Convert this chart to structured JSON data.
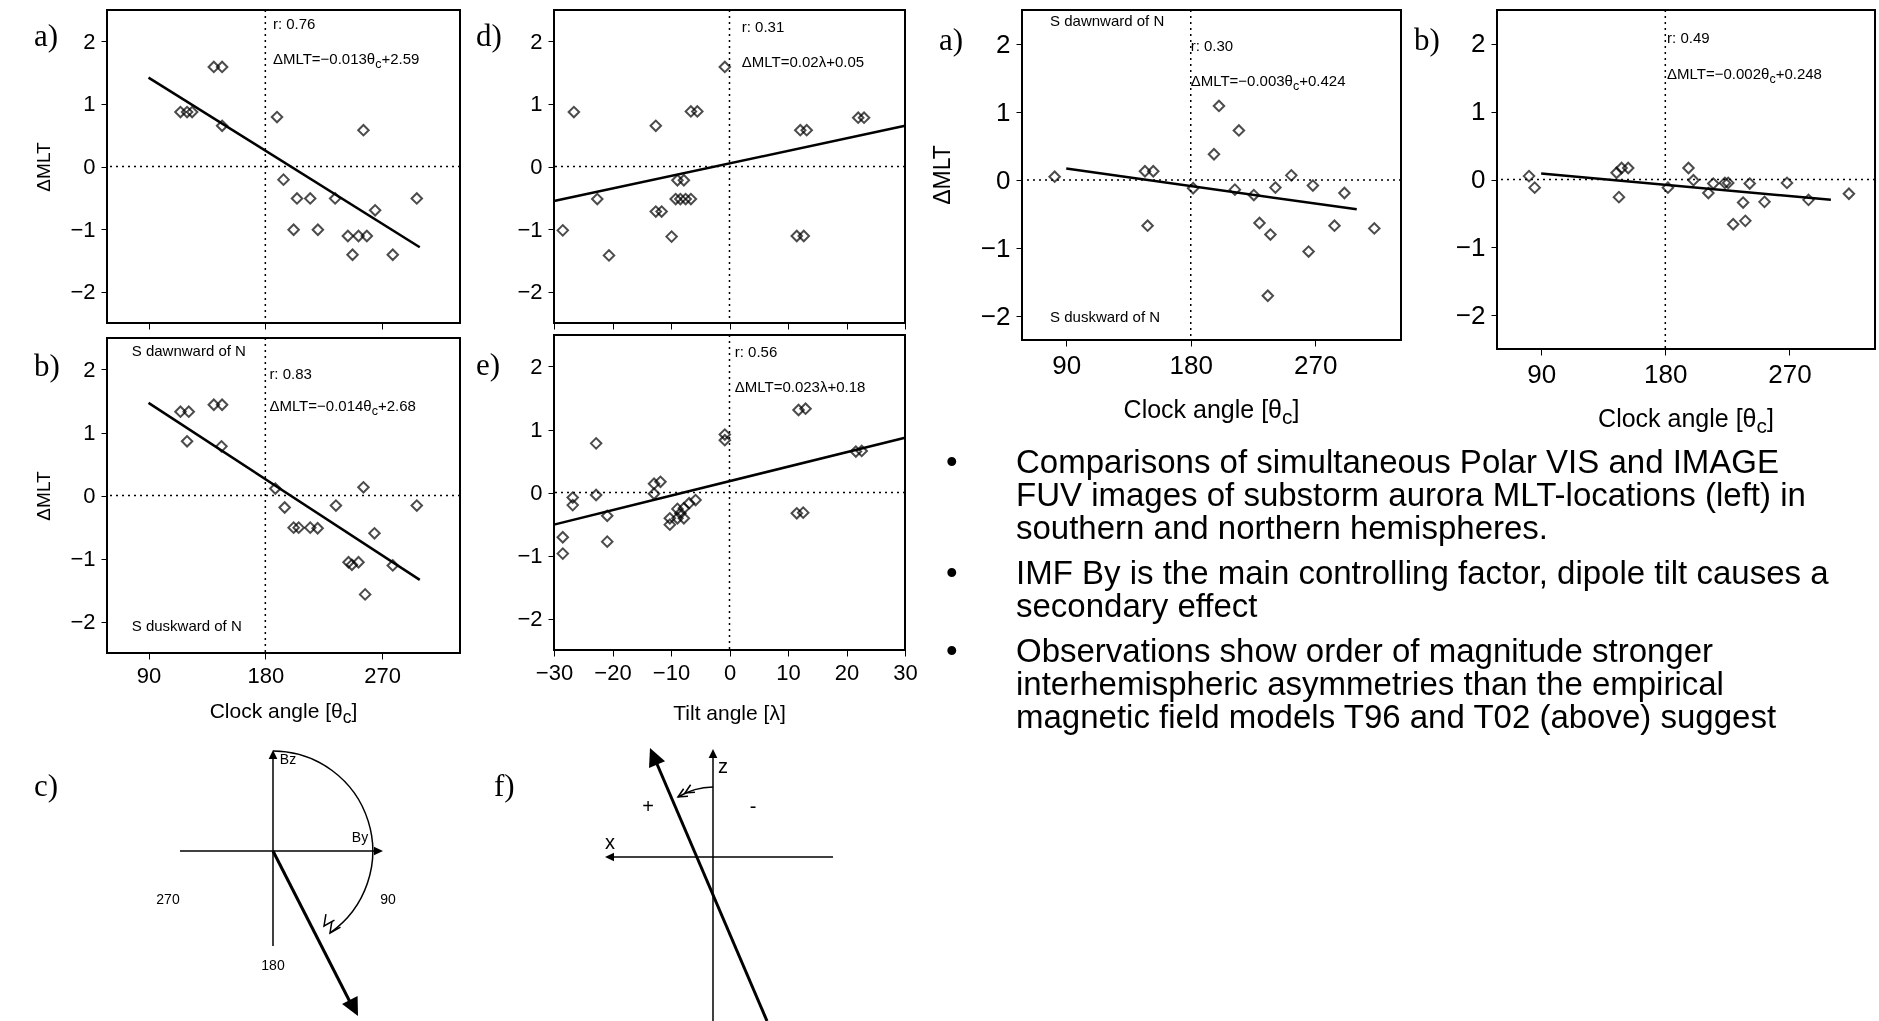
{
  "chart_data": [
    {
      "type": "scatter",
      "title": "a)",
      "ylabel": "ΔMLT",
      "tick_labels": "y",
      "xlim": [
        58,
        330
      ],
      "ylim": [
        -2.5,
        2.5
      ],
      "xticks": [
        90,
        180,
        270
      ],
      "yticks": [
        -2,
        -1,
        0,
        1,
        2
      ],
      "annotations": [
        "r: 0.76",
        "ΔMLT=−0.013θ$_{c}$+2.59"
      ],
      "ref_lines": [
        {
          "axis": "x",
          "value": 180,
          "line_style": "dotted"
        },
        {
          "axis": "y",
          "value": 0,
          "line_style": "dotted"
        }
      ],
      "series": [
        {
          "color": "#000000",
          "marker": "diamond",
          "x": [
            140.3,
            146.7,
            114.6,
            119.7,
            123.6,
            146.7,
            189,
            255.6,
            194,
            204.4,
            214.6,
            233.8,
            296.7,
            264.6,
            201.8,
            220.5,
            243.6,
            251.8,
            258.2,
            247.2,
            278.2
          ],
          "values": [
            1.59,
            1.59,
            0.87,
            0.87,
            0.87,
            0.65,
            0.79,
            0.58,
            -0.21,
            -0.51,
            -0.51,
            -0.51,
            -0.51,
            -0.7,
            -1.01,
            -1.01,
            -1.11,
            -1.11,
            -1.11,
            -1.41,
            -1.41
          ]
        },
        {
          "type": "line",
          "marker": "none",
          "color": "#000000",
          "x": [
            90,
            299
          ],
          "values": [
            1.42,
            -1.29
          ]
        }
      ]
    },
    {
      "type": "scatter",
      "title": "b)",
      "xlabel": "Clock angle [θ$_{c}$]",
      "ylabel": "ΔMLT",
      "xlim": [
        58,
        330
      ],
      "ylim": [
        -2.5,
        2.5
      ],
      "xticks": [
        90,
        180,
        270
      ],
      "yticks": [
        -2,
        -1,
        0,
        1,
        2
      ],
      "annotations": [
        "S dawnward of N",
        "r: 0.83",
        "ΔMLT=−0.014θ$_{c}$+2.68",
        "S duskward of N"
      ],
      "ref_lines": [
        {
          "axis": "x",
          "value": 180,
          "line_style": "dotted"
        },
        {
          "axis": "y",
          "value": 0,
          "line_style": "dotted"
        }
      ],
      "series": [
        {
          "color": "#000000",
          "marker": "diamond",
          "x": [
            114.6,
            121,
            140.3,
            146.7,
            119.7,
            146.2,
            187.7,
            194.9,
            201.8,
            205.7,
            214.6,
            220.3,
            234.4,
            296.7,
            255.6,
            264.1,
            244.1,
            251.8,
            246.7,
            278.2,
            256.9
          ],
          "values": [
            1.33,
            1.33,
            1.44,
            1.44,
            0.86,
            0.78,
            0.11,
            -0.19,
            -0.51,
            -0.51,
            -0.51,
            -0.52,
            -0.16,
            -0.16,
            0.13,
            -0.6,
            -1.06,
            -1.06,
            -1.1,
            -1.11,
            -1.57
          ]
        },
        {
          "type": "line",
          "marker": "none",
          "color": "#000000",
          "x": [
            90,
            299
          ],
          "values": [
            1.47,
            -1.34
          ]
        }
      ]
    },
    {
      "type": "other",
      "title": "c)",
      "annotations": [
        "Bz",
        "By",
        "270",
        "90",
        "180"
      ]
    },
    {
      "type": "scatter",
      "title": "d)",
      "tick_labels": "y",
      "xlim": [
        -30,
        30
      ],
      "ylim": [
        -2.5,
        2.5
      ],
      "xticks": [
        -30,
        -20,
        -10,
        0,
        10,
        20,
        30
      ],
      "yticks": [
        -2,
        -1,
        0,
        1,
        2
      ],
      "annotations": [
        "r: 0.31",
        "ΔMLT=0.02λ+0.05"
      ],
      "ref_lines": [
        {
          "axis": "x",
          "value": 0,
          "line_style": "dotted"
        },
        {
          "axis": "y",
          "value": 0,
          "line_style": "dotted"
        }
      ],
      "series": [
        {
          "color": "#000000",
          "marker": "diamond",
          "x": [
            -26.6,
            -0.8,
            -12.6,
            -6.6,
            -5.5,
            12.1,
            13.2,
            22,
            23,
            -8.9,
            -7.8,
            -9.2,
            -8.4,
            -7.5,
            -6.6,
            -22.6,
            -12.6,
            -11.6,
            -28.5,
            -9.9,
            11.5,
            12.7,
            -20.6
          ],
          "values": [
            0.87,
            1.59,
            0.65,
            0.88,
            0.88,
            0.58,
            0.58,
            0.78,
            0.78,
            -0.22,
            -0.22,
            -0.52,
            -0.52,
            -0.52,
            -0.52,
            -0.52,
            -0.72,
            -0.72,
            -1.02,
            -1.12,
            -1.11,
            -1.11,
            -1.42
          ]
        },
        {
          "type": "line",
          "marker": "none",
          "color": "#000000",
          "x": [
            -30,
            30
          ],
          "values": [
            -0.55,
            0.65
          ]
        }
      ]
    },
    {
      "type": "scatter",
      "title": "e)",
      "xlabel": "Tilt angle [λ]",
      "xlim": [
        -30,
        30
      ],
      "ylim": [
        -2.5,
        2.5
      ],
      "xticks": [
        -30,
        -20,
        -10,
        0,
        10,
        20,
        30
      ],
      "yticks": [
        -2,
        -1,
        0,
        1,
        2
      ],
      "annotations": [
        "r: 0.56",
        "ΔMLT=0.023λ+0.18"
      ],
      "ref_lines": [
        {
          "axis": "x",
          "value": 0,
          "line_style": "dotted"
        },
        {
          "axis": "y",
          "value": 0,
          "line_style": "dotted"
        }
      ],
      "series": [
        {
          "color": "#000000",
          "marker": "diamond",
          "x": [
            -22.8,
            -22.8,
            -26.8,
            -26.8,
            -20.9,
            -20.9,
            -28.5,
            -28.5,
            -12.9,
            -11.8,
            -12.9,
            -10.2,
            -10.2,
            -8.9,
            -8.9,
            -7.8,
            -7.8,
            -6.9,
            -5.8,
            -8.4,
            -0.8,
            -0.8,
            11.8,
            13,
            11.5,
            12.6,
            21.6,
            22.6
          ],
          "values": [
            0.78,
            -0.04,
            -0.08,
            -0.2,
            -0.37,
            -0.78,
            -0.71,
            -0.97,
            0.14,
            0.17,
            -0.02,
            -0.41,
            -0.51,
            -0.26,
            -0.41,
            -0.25,
            -0.41,
            -0.17,
            -0.12,
            -0.33,
            0.92,
            0.83,
            1.31,
            1.33,
            -0.33,
            -0.32,
            0.65,
            0.66
          ]
        },
        {
          "type": "line",
          "marker": "none",
          "color": "#000000",
          "x": [
            -30,
            30
          ],
          "values": [
            -0.51,
            0.87
          ]
        }
      ]
    },
    {
      "type": "other",
      "title": "f)",
      "annotations": [
        "z",
        "x",
        "+",
        "-"
      ]
    },
    {
      "type": "scatter",
      "title": "a)",
      "xlabel": "Clock angle [θ$_{c}$]",
      "ylabel": "ΔMLT",
      "xlim": [
        58,
        332
      ],
      "ylim": [
        -2.35,
        2.5
      ],
      "xticks": [
        90,
        180,
        270
      ],
      "yticks": [
        -2,
        -1,
        0,
        1,
        2
      ],
      "annotations": [
        "S dawnward of N",
        "r: 0.30",
        "ΔMLT=−0.003θ$_{c}$+0.424",
        "S duskward of N"
      ],
      "ref_lines": [
        {
          "axis": "x",
          "value": 180,
          "line_style": "dotted"
        },
        {
          "axis": "y",
          "value": 0,
          "line_style": "dotted"
        }
      ],
      "series": [
        {
          "color": "#000000",
          "marker": "diamond",
          "x": [
            81.6,
            146.9,
            152.9,
            148.8,
            181.7,
            196.8,
            200.4,
            214.8,
            211.9,
            225.6,
            229.7,
            241.2,
            237.6,
            235.7,
            252.7,
            268.3,
            265.2,
            283.9,
            291.1,
            312.7
          ],
          "values": [
            0.05,
            0.13,
            0.13,
            -0.67,
            -0.12,
            0.38,
            1.09,
            0.73,
            -0.14,
            -0.22,
            -0.63,
            -0.11,
            -0.8,
            -1.7,
            0.07,
            -0.08,
            -1.05,
            -0.67,
            -0.19,
            -0.71
          ]
        },
        {
          "type": "line",
          "marker": "none",
          "color": "#000000",
          "x": [
            90,
            300
          ],
          "values": [
            0.17,
            -0.43
          ]
        }
      ]
    },
    {
      "type": "scatter",
      "title": "b)",
      "xlabel": "Clock angle [θ$_{c}$]",
      "xlim": [
        58,
        332
      ],
      "ylim": [
        -2.5,
        2.5
      ],
      "xticks": [
        90,
        180,
        270
      ],
      "yticks": [
        -2,
        -1,
        0,
        1,
        2
      ],
      "annotations": [
        "r: 0.49",
        "ΔMLT=−0.002θ$_{c}$+0.248"
      ],
      "ref_lines": [
        {
          "axis": "x",
          "value": 180,
          "line_style": "dotted"
        },
        {
          "axis": "y",
          "value": 0,
          "line_style": "dotted"
        }
      ],
      "series": [
        {
          "color": "#000000",
          "marker": "diamond",
          "x": [
            81.2,
            85.3,
            144.7,
            148.3,
            153.1,
            146.4,
            181.9,
            196.8,
            200.4,
            211.2,
            214.8,
            223.2,
            225.6,
            229.2,
            236.4,
            238,
            241.2,
            251.9,
            268.2,
            283.8,
            313.1
          ],
          "values": [
            0.05,
            -0.12,
            0.1,
            0.17,
            0.17,
            -0.26,
            -0.12,
            0.17,
            -0.01,
            -0.2,
            -0.06,
            -0.05,
            -0.05,
            -0.66,
            -0.34,
            -0.61,
            -0.06,
            -0.33,
            -0.05,
            -0.3,
            -0.21
          ]
        },
        {
          "type": "line",
          "marker": "none",
          "color": "#000000",
          "x": [
            90,
            300
          ],
          "values": [
            0.09,
            -0.3
          ]
        }
      ]
    },
    {
      "type": "other",
      "annotations": [
        "•\tComparisons of simultaneous Polar VIS and IMAGE FUV images of substorm aurora MLT-locations (left) in southern and northern hemispheres.",
        "•\tIMF By is the main controlling factor, dipole tilt causes a secondary effect",
        "•\tObservations show order of magnitude stronger interhemispheric asymmetries than the empirical magnetic field models T96 and T02 (above) suggest"
      ]
    }
  ]
}
